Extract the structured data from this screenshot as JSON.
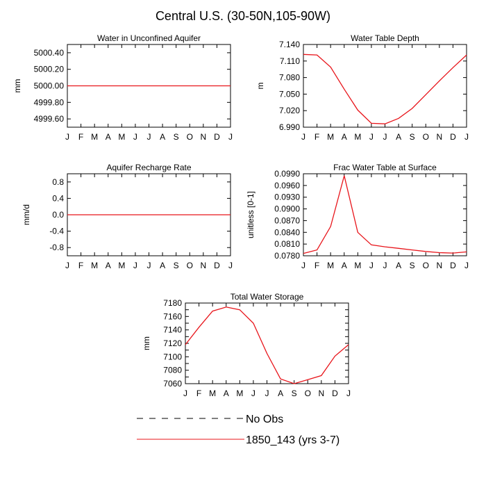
{
  "title": "Central U.S. (30-50N,105-90W)",
  "legend": [
    {
      "label": "No Obs",
      "color": "#000000",
      "dash": true
    },
    {
      "label": "1850_143 (yrs 3-7)",
      "color": "#e8141a",
      "dash": false
    }
  ],
  "months": [
    "J",
    "F",
    "M",
    "A",
    "M",
    "J",
    "J",
    "A",
    "S",
    "O",
    "N",
    "D",
    "J"
  ],
  "chart_data": [
    {
      "type": "line",
      "title": "Water in Unconfined Aquifer",
      "ylabel": "mm",
      "ylim": [
        4999.5,
        5000.5
      ],
      "yticks": [
        4999.6,
        4999.8,
        5000.0,
        5000.2,
        5000.4
      ],
      "ytick_labels": [
        "4999.60",
        "4999.80",
        "5000.00",
        "5000.20",
        "5000.40"
      ],
      "series": [
        {
          "name": "1850_143 (yrs 3-7)",
          "values": [
            5000,
            5000,
            5000,
            5000,
            5000,
            5000,
            5000,
            5000,
            5000,
            5000,
            5000,
            5000,
            5000
          ]
        }
      ]
    },
    {
      "type": "line",
      "title": "Water Table Depth",
      "ylabel": "m",
      "ylim": [
        6.99,
        7.14
      ],
      "yticks": [
        6.99,
        7.02,
        7.05,
        7.08,
        7.11,
        7.14
      ],
      "ytick_labels": [
        "6.990",
        "7.020",
        "7.050",
        "7.080",
        "7.110",
        "7.140"
      ],
      "series": [
        {
          "name": "1850_143 (yrs 3-7)",
          "values": [
            7.122,
            7.121,
            7.099,
            7.059,
            7.021,
            6.997,
            6.996,
            7.006,
            7.024,
            7.049,
            7.074,
            7.098,
            7.121
          ]
        }
      ]
    },
    {
      "type": "line",
      "title": "Aquifer Recharge Rate",
      "ylabel": "mm/d",
      "ylim": [
        -1.0,
        1.0
      ],
      "yticks": [
        -0.8,
        -0.4,
        0.0,
        0.4,
        0.8
      ],
      "ytick_labels": [
        "-0.8",
        "-0.4",
        "0.0",
        "0.4",
        "0.8"
      ],
      "series": [
        {
          "name": "1850_143 (yrs 3-7)",
          "values": [
            0,
            0,
            0,
            0,
            0,
            0,
            0,
            0,
            0,
            0,
            0,
            0,
            0
          ]
        }
      ]
    },
    {
      "type": "line",
      "title": "Frac Water Table at Surface",
      "ylabel": "unitless [0-1]",
      "ylim": [
        0.078,
        0.099
      ],
      "yticks": [
        0.078,
        0.081,
        0.084,
        0.087,
        0.09,
        0.093,
        0.096,
        0.099
      ],
      "ytick_labels": [
        "0.0780",
        "0.0810",
        "0.0840",
        "0.0870",
        "0.0900",
        "0.0930",
        "0.0960",
        "0.0990"
      ],
      "series": [
        {
          "name": "1850_143 (yrs 3-7)",
          "values": [
            0.0786,
            0.0795,
            0.0855,
            0.0985,
            0.084,
            0.0808,
            0.0803,
            0.0799,
            0.0795,
            0.0791,
            0.0788,
            0.0787,
            0.079
          ]
        }
      ]
    },
    {
      "type": "line",
      "title": "Total Water Storage",
      "ylabel": "mm",
      "ylim": [
        7060,
        7180
      ],
      "yticks": [
        7060,
        7070,
        7080,
        7090,
        7100,
        7110,
        7120,
        7130,
        7140,
        7150,
        7160,
        7170,
        7180
      ],
      "ytick_labels": [
        "7060",
        "",
        "7080",
        "",
        "7100",
        "",
        "7120",
        "",
        "7140",
        "",
        "7160",
        "",
        "7180"
      ],
      "series": [
        {
          "name": "1850_143 (yrs 3-7)",
          "values": [
            7118,
            7144,
            7168,
            7174,
            7170,
            7150,
            7105,
            7067,
            7060,
            7066,
            7072,
            7101,
            7118
          ]
        }
      ]
    }
  ]
}
